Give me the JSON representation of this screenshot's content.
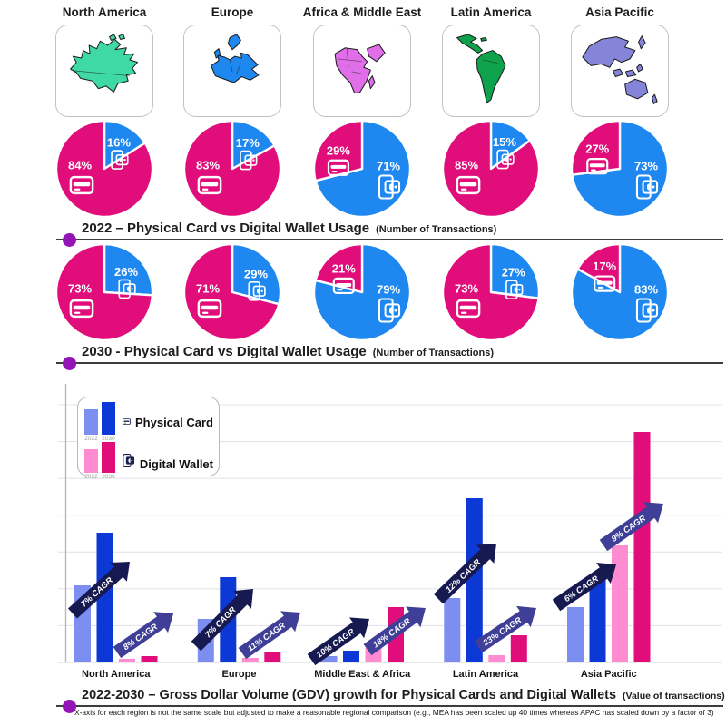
{
  "colors": {
    "physical_card": "#E00D7B",
    "digital_wallet": "#1E88F0",
    "bar_pc_2022": "#7C8EEF",
    "bar_pc_2030": "#0C38D6",
    "bar_dw_2022": "#FF8CD0",
    "bar_dw_2030": "#E00D7B",
    "arrow_physical": "#161A50",
    "arrow_digital": "#3F3F97",
    "caption_dot": "#9315B5",
    "legend_icon": "#19204F",
    "map_north_america": "#3ED9A4",
    "map_europe": "#1E88F0",
    "map_africa_middle_east": "#E06EE8",
    "map_latin_america": "#0FA24C",
    "map_asia_pacific": "#8484D9"
  },
  "regions": [
    "North America",
    "Europe",
    "Africa & Middle East",
    "Latin America",
    "Asia Pacific"
  ],
  "captions": {
    "pies_2022_title": "2022 – Physical Card vs Digital Wallet Usage",
    "pies_2022_subtitle": "(Number of Transactions)",
    "pies_2030_title": "2030 - Physical Card vs Digital Wallet Usage",
    "pies_2030_subtitle": "(Number of Transactions)",
    "bar_title": "2022-2030 – Gross Dollar Volume (GDV) growth for Physical Cards and Digital Wallets",
    "bar_subtitle": "(Value of transactions)",
    "bar_footnote": "X-axis for each region is not the same scale but adjusted to make a reasonable regional comparison (e.g., MEA has been scaled up 40 times whereas APAC has scaled down by a factor of 3)"
  },
  "legend": {
    "rows": [
      {
        "year_left": "2022",
        "year_right": "2030",
        "label": "Physical Card",
        "icon": "credit-card-icon"
      },
      {
        "year_left": "2022",
        "year_right": "2030",
        "label": "Digital Wallet",
        "icon": "digital-wallet-icon"
      }
    ]
  },
  "chart_data": [
    {
      "type": "pie",
      "title": "2022 – Physical Card vs Digital Wallet Usage (Number of Transactions)",
      "legend": [
        "Physical Card",
        "Digital Wallet"
      ],
      "unit": "percent",
      "pies": [
        {
          "region": "North America",
          "physical_card_pct": 84,
          "digital_wallet_pct": 16
        },
        {
          "region": "Europe",
          "physical_card_pct": 83,
          "digital_wallet_pct": 17
        },
        {
          "region": "Africa & Middle East",
          "physical_card_pct": 29,
          "digital_wallet_pct": 71
        },
        {
          "region": "Latin America",
          "physical_card_pct": 85,
          "digital_wallet_pct": 15
        },
        {
          "region": "Asia Pacific",
          "physical_card_pct": 27,
          "digital_wallet_pct": 73
        }
      ]
    },
    {
      "type": "pie",
      "title": "2030 - Physical Card vs Digital Wallet Usage (Number of Transactions)",
      "legend": [
        "Physical Card",
        "Digital Wallet"
      ],
      "unit": "percent",
      "pies": [
        {
          "region": "North America",
          "physical_card_pct": 73,
          "digital_wallet_pct": 26
        },
        {
          "region": "Europe",
          "physical_card_pct": 71,
          "digital_wallet_pct": 29
        },
        {
          "region": "Africa & Middle East",
          "physical_card_pct": 21,
          "digital_wallet_pct": 79
        },
        {
          "region": "Latin America",
          "physical_card_pct": 73,
          "digital_wallet_pct": 27
        },
        {
          "region": "Asia Pacific",
          "physical_card_pct": 17,
          "digital_wallet_pct": 83
        }
      ]
    },
    {
      "type": "bar",
      "title": "2022-2030 – Gross Dollar Volume (GDV) growth for Physical Cards and Digital Wallets (Value of transactions)",
      "categories": [
        "North America",
        "Europe",
        "Middle East & Africa",
        "Latin America",
        "Asia Pacific"
      ],
      "value_unit": "relative bar height (axis unlabeled; per-region scale adjusted, see footnote)",
      "grid": true,
      "legend_position": "top-left",
      "series": [
        {
          "name": "Physical Card 2022",
          "values": [
            85,
            48,
            7,
            71,
            61
          ]
        },
        {
          "name": "Physical Card 2030",
          "values": [
            143,
            94,
            13,
            181,
            97
          ]
        },
        {
          "name": "Digital Wallet 2022",
          "values": [
            4,
            5,
            16,
            8,
            129
          ]
        },
        {
          "name": "Digital Wallet 2030",
          "values": [
            7,
            11,
            61,
            30,
            254
          ]
        }
      ],
      "cagr_annotations": {
        "physical_card": [
          "7% CAGR",
          "7% CAGR",
          "10% CAGR",
          "12% CAGR",
          "6% CAGR"
        ],
        "digital_wallet": [
          "8% CAGR",
          "11% CAGR",
          "18% CAGR",
          "23% CAGR",
          "9% CAGR"
        ]
      }
    }
  ]
}
